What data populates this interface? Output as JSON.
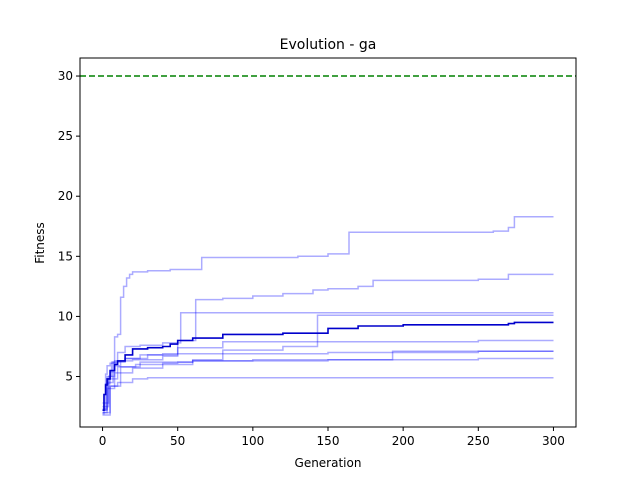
{
  "chart_data": {
    "type": "line",
    "title": "Evolution - ga",
    "xlabel": "Generation",
    "ylabel": "Fitness",
    "xlim": [
      -15,
      315
    ],
    "ylim": [
      0.8,
      31.5
    ],
    "xticks": [
      0,
      50,
      100,
      150,
      200,
      250,
      300
    ],
    "yticks": [
      5,
      10,
      15,
      20,
      25,
      30
    ],
    "grid": false,
    "reference_line": {
      "y": 30,
      "color": "#008000",
      "style": "dashed"
    },
    "run_color": "#0000ff",
    "mean_color": "#0000cc",
    "runs": [
      {
        "x": [
          0,
          1,
          2,
          3,
          5,
          6,
          8,
          10,
          12,
          14,
          16,
          18,
          20,
          30,
          45,
          60,
          66,
          100,
          130,
          150,
          164,
          200,
          240,
          260,
          270,
          274,
          300
        ],
        "y": [
          1.9,
          3.5,
          5.2,
          5.9,
          6.1,
          6.2,
          8.3,
          8.5,
          11.6,
          12.5,
          13.2,
          13.5,
          13.7,
          13.8,
          13.9,
          13.9,
          14.9,
          14.9,
          15.0,
          15.2,
          17.0,
          17.0,
          17.0,
          17.1,
          17.4,
          18.3,
          18.3
        ]
      },
      {
        "x": [
          0,
          2,
          5,
          8,
          12,
          20,
          40,
          50,
          62,
          80,
          100,
          120,
          140,
          150,
          170,
          180,
          200,
          250,
          270,
          300
        ],
        "y": [
          2.2,
          4.4,
          5.4,
          5.9,
          6.3,
          6.4,
          6.7,
          8.0,
          11.4,
          11.5,
          11.7,
          11.9,
          12.2,
          12.3,
          12.5,
          13.0,
          13.0,
          13.1,
          13.5,
          13.5
        ]
      },
      {
        "x": [
          0,
          3,
          6,
          10,
          15,
          25,
          40,
          52,
          60,
          90,
          140,
          145,
          200,
          250,
          300
        ],
        "y": [
          2.3,
          5.0,
          6.1,
          7.0,
          7.5,
          7.6,
          7.8,
          10.3,
          10.3,
          10.3,
          10.3,
          10.3,
          10.3,
          10.3,
          10.3
        ]
      },
      {
        "x": [
          0,
          4,
          8,
          15,
          25,
          40,
          80,
          120,
          143,
          150,
          200,
          250,
          300
        ],
        "y": [
          2.5,
          5.0,
          6.3,
          6.5,
          6.8,
          6.9,
          7.2,
          7.5,
          10.1,
          10.1,
          10.1,
          10.1,
          10.1
        ]
      },
      {
        "x": [
          0,
          3,
          7,
          15,
          30,
          50,
          80,
          120,
          150,
          200,
          250,
          300
        ],
        "y": [
          2.0,
          4.5,
          6.2,
          6.5,
          6.8,
          7.4,
          7.9,
          7.9,
          7.9,
          7.9,
          8.0,
          8.0
        ]
      },
      {
        "x": [
          0,
          4,
          10,
          25,
          60,
          80,
          100,
          150,
          200,
          250,
          300
        ],
        "y": [
          2.8,
          4.8,
          5.8,
          6.2,
          6.4,
          6.9,
          6.9,
          7.0,
          7.0,
          7.1,
          7.1
        ]
      },
      {
        "x": [
          0,
          3,
          8,
          20,
          40,
          60,
          100,
          145,
          150,
          193,
          200,
          250,
          300
        ],
        "y": [
          2.2,
          4.0,
          5.3,
          5.7,
          6.0,
          6.3,
          6.3,
          6.3,
          6.4,
          7.1,
          7.1,
          7.1,
          7.1
        ]
      },
      {
        "x": [
          0,
          5,
          12,
          22,
          40,
          50,
          60,
          100,
          150,
          200,
          250,
          300
        ],
        "y": [
          1.8,
          4.2,
          5.8,
          6.0,
          6.1,
          6.2,
          6.3,
          6.4,
          6.4,
          6.4,
          6.5,
          6.5
        ]
      },
      {
        "x": [
          0,
          5,
          10,
          20,
          30,
          50,
          100,
          150,
          200,
          250,
          300
        ],
        "y": [
          2.0,
          4.2,
          4.5,
          4.8,
          4.9,
          4.9,
          4.9,
          4.9,
          4.9,
          4.9,
          4.9
        ]
      }
    ],
    "mean": {
      "x": [
        0,
        1,
        2,
        3,
        5,
        8,
        10,
        15,
        20,
        30,
        40,
        45,
        50,
        60,
        80,
        100,
        120,
        143,
        150,
        170,
        200,
        250,
        270,
        274,
        300
      ],
      "y": [
        2.2,
        3.5,
        4.3,
        4.8,
        5.5,
        6.0,
        6.3,
        6.8,
        7.3,
        7.4,
        7.5,
        7.7,
        8.0,
        8.2,
        8.5,
        8.5,
        8.6,
        8.6,
        9.0,
        9.2,
        9.3,
        9.3,
        9.4,
        9.5,
        9.5
      ]
    }
  }
}
